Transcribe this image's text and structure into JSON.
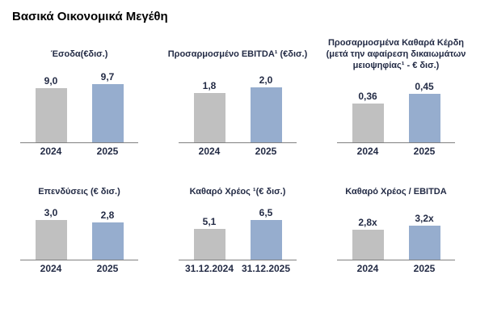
{
  "page_title": "Βασικά Οικονομικά Μεγέθη",
  "colors": {
    "bar_2024": "#C0C0C0",
    "bar_2025": "#96ADCE",
    "chart_text": "#232B45",
    "heading_text": "#000000",
    "axis_line": "#808080"
  },
  "chart_data": [
    {
      "type": "bar",
      "title": "Έσοδα(€δισ.)",
      "categories": [
        "2024",
        "2025"
      ],
      "values": [
        9.0,
        9.7
      ],
      "value_labels": [
        "9,0",
        "9,7"
      ]
    },
    {
      "type": "bar",
      "title": "Προσαρμοσμένο  EBITDA¹ (€δισ.)",
      "categories": [
        "2024",
        "2025"
      ],
      "values": [
        1.8,
        2.0
      ],
      "value_labels": [
        "1,8",
        "2,0"
      ]
    },
    {
      "type": "bar",
      "title": "Προσαρμοσμένα Καθαρά Κέρδη\n(μετά την αφαίρεση δικαιωμάτων\nμειοψηφίας¹  - € δισ.)",
      "categories": [
        "2024",
        "2025"
      ],
      "values": [
        0.36,
        0.45
      ],
      "value_labels": [
        "0,36",
        "0,45"
      ]
    },
    {
      "type": "bar",
      "title": "Επενδύσεις (€ δισ.)",
      "categories": [
        "2024",
        "2025"
      ],
      "values": [
        3.0,
        2.8
      ],
      "value_labels": [
        "3,0",
        "2,8"
      ]
    },
    {
      "type": "bar",
      "title": "Καθαρό Χρέος ¹(€ δισ.)",
      "categories": [
        "31.12.2024",
        "31.12.2025"
      ],
      "values": [
        5.1,
        6.5
      ],
      "value_labels": [
        "5,1",
        "6,5"
      ]
    },
    {
      "type": "bar",
      "title": "Καθαρό Χρέος / EBITDA",
      "categories": [
        "2024",
        "2025"
      ],
      "values": [
        2.8,
        3.2
      ],
      "value_labels": [
        "2,8x",
        "3,2x"
      ]
    }
  ]
}
